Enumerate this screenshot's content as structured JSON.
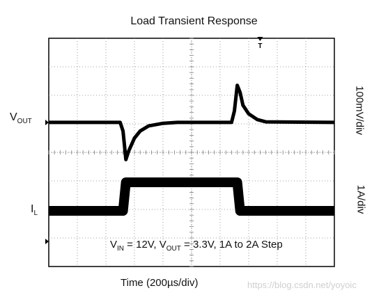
{
  "chart_data": {
    "type": "line",
    "title": "Load Transient Response",
    "xlabel": "Time (200µs/div)",
    "grid": true,
    "x_divisions": 10,
    "y_divisions": 8,
    "trigger_marker": "T",
    "series": [
      {
        "name": "VOUT",
        "label_main": "V",
        "label_sub": "OUT",
        "scale": "100mV/div",
        "units": "div",
        "x": [
          0,
          2.5,
          2.6,
          2.7,
          2.8,
          3.0,
          3.2,
          3.5,
          4.0,
          4.5,
          6.4,
          6.5,
          6.6,
          6.7,
          6.8,
          7.0,
          7.3,
          7.6,
          10
        ],
        "y": [
          0,
          0,
          -0.3,
          -1.3,
          -1.0,
          -0.55,
          -0.3,
          -0.12,
          -0.03,
          0,
          0,
          0.4,
          1.3,
          1.05,
          0.6,
          0.3,
          0.1,
          0.02,
          0
        ]
      },
      {
        "name": "IL",
        "label_main": "I",
        "label_sub": "L",
        "scale": "1A/div",
        "units": "div",
        "x": [
          0,
          2.6,
          2.7,
          6.6,
          6.7,
          10
        ],
        "y": [
          0,
          0,
          1,
          1,
          0,
          0
        ]
      }
    ]
  },
  "labels": {
    "scale_top": "100mV/div",
    "scale_bottom": "1A/div"
  },
  "annotation": {
    "vin_main": "V",
    "vin_sub": "IN",
    "eq1": " = 12V, ",
    "vout_main": "V",
    "vout_sub": "OUT",
    "eq2": " = 3.3V, 1A to 2A Step"
  },
  "watermark": "https://blog.csdn.net/yoyoic",
  "colors": {
    "trace": "#000000",
    "grid": "#808080"
  }
}
